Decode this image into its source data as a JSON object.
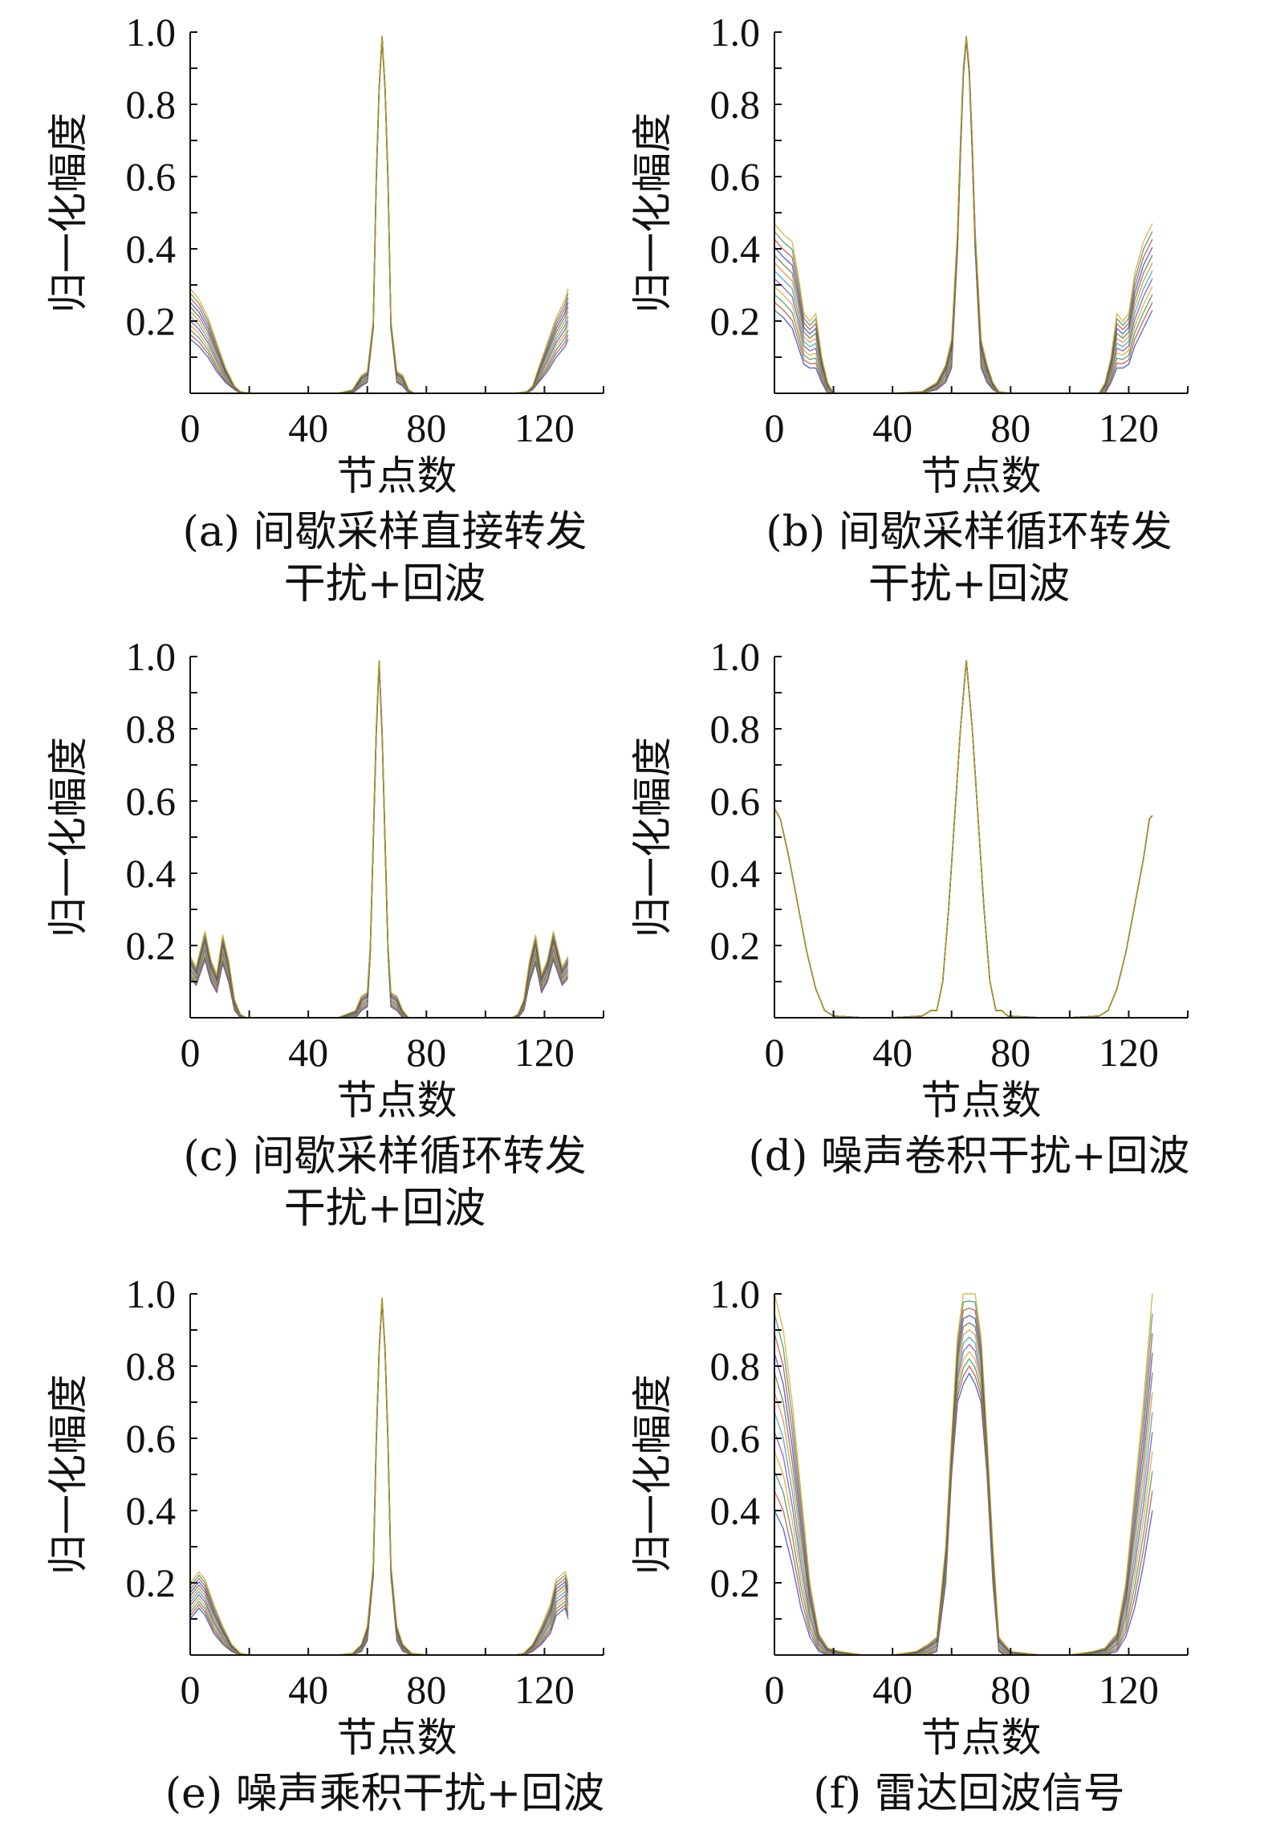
{
  "chart_data": [
    {
      "type": "line",
      "caption": [
        "(a) 间歇采样直接转发",
        "干扰+回波"
      ],
      "xlabel": "节点数",
      "ylabel": "归一化幅度",
      "xlim": [
        0,
        140
      ],
      "ylim": [
        0,
        1.0
      ],
      "xticks": [
        0,
        40,
        80,
        120
      ],
      "yticks": [
        0.2,
        0.4,
        0.6,
        0.8,
        1.0
      ],
      "grid": false,
      "x": [
        0,
        3,
        6,
        9,
        12,
        15,
        17,
        20,
        30,
        40,
        50,
        55,
        58,
        60,
        62,
        63,
        64,
        65,
        66,
        67,
        68,
        70,
        72,
        74,
        76,
        80,
        90,
        100,
        110,
        114,
        116,
        118,
        121,
        124,
        127,
        128
      ],
      "series_upper": [
        0.29,
        0.26,
        0.21,
        0.14,
        0.07,
        0.02,
        0.005,
        0.0,
        0.0,
        0.0,
        0.0,
        0.01,
        0.05,
        0.06,
        0.2,
        0.6,
        0.85,
        0.99,
        0.85,
        0.6,
        0.2,
        0.06,
        0.05,
        0.01,
        0.0,
        0.0,
        0.0,
        0.0,
        0.0,
        0.005,
        0.02,
        0.07,
        0.14,
        0.21,
        0.26,
        0.29
      ],
      "series_lower": [
        0.15,
        0.13,
        0.1,
        0.06,
        0.03,
        0.01,
        0.0,
        0.0,
        0.0,
        0.0,
        0.0,
        0.0,
        0.02,
        0.03,
        0.18,
        0.58,
        0.84,
        0.98,
        0.84,
        0.58,
        0.18,
        0.03,
        0.02,
        0.0,
        0.0,
        0.0,
        0.0,
        0.0,
        0.0,
        0.0,
        0.01,
        0.03,
        0.06,
        0.1,
        0.13,
        0.15
      ]
    },
    {
      "type": "line",
      "caption": [
        "(b) 间歇采样循环转发",
        "干扰+回波"
      ],
      "xlabel": "节点数",
      "ylabel": "归一化幅度",
      "xlim": [
        0,
        140
      ],
      "ylim": [
        0,
        1.0
      ],
      "xticks": [
        0,
        40,
        80,
        120
      ],
      "yticks": [
        0.2,
        0.4,
        0.6,
        0.8,
        1.0
      ],
      "grid": false,
      "x": [
        0,
        3,
        6,
        8,
        10,
        12,
        14,
        16,
        18,
        20,
        30,
        40,
        50,
        55,
        58,
        60,
        62,
        63,
        64,
        65,
        66,
        67,
        68,
        70,
        72,
        74,
        76,
        80,
        90,
        100,
        110,
        112,
        114,
        116,
        118,
        120,
        122,
        125,
        128
      ],
      "series_upper": [
        0.47,
        0.44,
        0.42,
        0.33,
        0.22,
        0.2,
        0.22,
        0.1,
        0.03,
        0.0,
        0.0,
        0.0,
        0.005,
        0.03,
        0.08,
        0.15,
        0.45,
        0.7,
        0.9,
        0.99,
        0.9,
        0.7,
        0.45,
        0.15,
        0.08,
        0.03,
        0.005,
        0.0,
        0.0,
        0.0,
        0.0,
        0.03,
        0.1,
        0.22,
        0.2,
        0.22,
        0.33,
        0.42,
        0.47
      ],
      "series_lower": [
        0.23,
        0.21,
        0.18,
        0.13,
        0.08,
        0.07,
        0.07,
        0.03,
        0.0,
        0.0,
        0.0,
        0.0,
        0.0,
        0.01,
        0.03,
        0.07,
        0.4,
        0.66,
        0.88,
        0.98,
        0.88,
        0.66,
        0.4,
        0.07,
        0.03,
        0.01,
        0.0,
        0.0,
        0.0,
        0.0,
        0.0,
        0.0,
        0.03,
        0.07,
        0.07,
        0.08,
        0.13,
        0.18,
        0.23
      ]
    },
    {
      "type": "line",
      "caption": [
        "(c) 间歇采样循环转发",
        "干扰+回波"
      ],
      "xlabel": "节点数",
      "ylabel": "归一化幅度",
      "xlim": [
        0,
        140
      ],
      "ylim": [
        0,
        1.0
      ],
      "xticks": [
        0,
        40,
        80,
        120
      ],
      "yticks": [
        0.2,
        0.4,
        0.6,
        0.8,
        1.0
      ],
      "grid": false,
      "x": [
        0,
        2,
        5,
        7,
        9,
        11,
        13,
        15,
        17,
        19,
        30,
        40,
        50,
        56,
        58,
        60,
        61,
        62,
        63,
        64,
        65,
        66,
        67,
        68,
        70,
        72,
        74,
        80,
        90,
        100,
        109,
        111,
        113,
        115,
        117,
        119,
        121,
        123,
        126,
        128
      ],
      "series_upper": [
        0.17,
        0.14,
        0.24,
        0.16,
        0.12,
        0.23,
        0.16,
        0.05,
        0.01,
        0.0,
        0.0,
        0.0,
        0.0,
        0.02,
        0.06,
        0.07,
        0.2,
        0.5,
        0.8,
        0.99,
        0.8,
        0.5,
        0.2,
        0.07,
        0.06,
        0.02,
        0.0,
        0.0,
        0.0,
        0.0,
        0.0,
        0.01,
        0.05,
        0.16,
        0.23,
        0.12,
        0.16,
        0.24,
        0.14,
        0.17
      ],
      "series_lower": [
        0.11,
        0.09,
        0.16,
        0.1,
        0.07,
        0.15,
        0.1,
        0.02,
        0.0,
        0.0,
        0.0,
        0.0,
        0.0,
        0.0,
        0.02,
        0.03,
        0.18,
        0.48,
        0.78,
        0.98,
        0.78,
        0.48,
        0.18,
        0.03,
        0.02,
        0.0,
        0.0,
        0.0,
        0.0,
        0.0,
        0.0,
        0.0,
        0.02,
        0.1,
        0.15,
        0.07,
        0.1,
        0.16,
        0.09,
        0.11
      ]
    },
    {
      "type": "line",
      "caption": [
        "(d) 噪声卷积干扰+回波"
      ],
      "xlabel": "节点数",
      "ylabel": "归一化幅度",
      "xlim": [
        0,
        140
      ],
      "ylim": [
        0,
        1.0
      ],
      "xticks": [
        0,
        40,
        80,
        120
      ],
      "yticks": [
        0.2,
        0.4,
        0.6,
        0.8,
        1.0
      ],
      "grid": false,
      "x": [
        0,
        2,
        5,
        8,
        11,
        14,
        17,
        20,
        30,
        40,
        50,
        53,
        55,
        57,
        59,
        61,
        63,
        65,
        67,
        69,
        71,
        73,
        75,
        77,
        79,
        90,
        100,
        110,
        113,
        116,
        119,
        122,
        125,
        127,
        128
      ],
      "series_upper": [
        0.58,
        0.55,
        0.44,
        0.31,
        0.18,
        0.08,
        0.02,
        0.005,
        0.0,
        0.0,
        0.005,
        0.02,
        0.02,
        0.1,
        0.3,
        0.55,
        0.8,
        0.99,
        0.8,
        0.55,
        0.3,
        0.1,
        0.02,
        0.02,
        0.005,
        0.0,
        0.0,
        0.005,
        0.02,
        0.08,
        0.18,
        0.31,
        0.44,
        0.55,
        0.56
      ],
      "series_lower": [
        0.58,
        0.55,
        0.44,
        0.31,
        0.18,
        0.08,
        0.02,
        0.005,
        0.0,
        0.0,
        0.005,
        0.02,
        0.02,
        0.1,
        0.3,
        0.55,
        0.8,
        0.99,
        0.8,
        0.55,
        0.3,
        0.1,
        0.02,
        0.02,
        0.005,
        0.0,
        0.0,
        0.005,
        0.02,
        0.08,
        0.18,
        0.31,
        0.44,
        0.55,
        0.56
      ]
    },
    {
      "type": "line",
      "caption": [
        "(e) 噪声乘积干扰+回波"
      ],
      "xlabel": "节点数",
      "ylabel": "归一化幅度",
      "xlim": [
        0,
        140
      ],
      "ylim": [
        0,
        1.0
      ],
      "xticks": [
        0,
        40,
        80,
        120
      ],
      "yticks": [
        0.2,
        0.4,
        0.6,
        0.8,
        1.0
      ],
      "grid": false,
      "x": [
        0,
        3,
        5,
        8,
        11,
        14,
        17,
        20,
        30,
        40,
        50,
        55,
        58,
        60,
        62,
        63,
        64,
        65,
        66,
        67,
        68,
        70,
        72,
        75,
        80,
        90,
        100,
        110,
        113,
        116,
        119,
        122,
        124,
        127,
        128
      ],
      "series_upper": [
        0.2,
        0.23,
        0.21,
        0.14,
        0.08,
        0.03,
        0.005,
        0.0,
        0.0,
        0.0,
        0.0,
        0.005,
        0.03,
        0.08,
        0.25,
        0.6,
        0.85,
        0.99,
        0.85,
        0.6,
        0.25,
        0.08,
        0.03,
        0.005,
        0.0,
        0.0,
        0.0,
        0.0,
        0.005,
        0.03,
        0.08,
        0.14,
        0.21,
        0.23,
        0.2
      ],
      "series_lower": [
        0.1,
        0.13,
        0.11,
        0.06,
        0.03,
        0.01,
        0.0,
        0.0,
        0.0,
        0.0,
        0.0,
        0.0,
        0.01,
        0.04,
        0.22,
        0.58,
        0.84,
        0.98,
        0.84,
        0.58,
        0.22,
        0.04,
        0.01,
        0.0,
        0.0,
        0.0,
        0.0,
        0.0,
        0.0,
        0.01,
        0.03,
        0.06,
        0.11,
        0.13,
        0.1
      ]
    },
    {
      "type": "line",
      "caption": [
        "(f) 雷达回波信号"
      ],
      "xlabel": "节点数",
      "ylabel": "归一化幅度",
      "xlim": [
        0,
        140
      ],
      "ylim": [
        0,
        1.0
      ],
      "xticks": [
        0,
        40,
        80,
        120
      ],
      "yticks": [
        0.2,
        0.4,
        0.6,
        0.8,
        1.0
      ],
      "grid": false,
      "x": [
        0,
        3,
        6,
        9,
        12,
        15,
        18,
        22,
        30,
        40,
        48,
        52,
        55,
        58,
        60,
        62,
        64,
        66,
        68,
        70,
        72,
        74,
        76,
        78,
        80,
        90,
        100,
        108,
        112,
        116,
        119,
        122,
        125,
        128
      ],
      "series_upper": [
        1.0,
        0.9,
        0.7,
        0.45,
        0.2,
        0.06,
        0.02,
        0.01,
        0.0,
        0.0,
        0.01,
        0.03,
        0.05,
        0.3,
        0.6,
        0.88,
        1.0,
        1.0,
        1.0,
        0.88,
        0.6,
        0.3,
        0.05,
        0.03,
        0.01,
        0.0,
        0.0,
        0.01,
        0.02,
        0.06,
        0.2,
        0.45,
        0.7,
        1.0
      ],
      "series_lower": [
        0.4,
        0.35,
        0.25,
        0.13,
        0.05,
        0.01,
        0.0,
        0.0,
        0.0,
        0.0,
        0.0,
        0.0,
        0.01,
        0.2,
        0.5,
        0.7,
        0.75,
        0.78,
        0.75,
        0.7,
        0.5,
        0.2,
        0.01,
        0.0,
        0.0,
        0.0,
        0.0,
        0.0,
        0.0,
        0.01,
        0.05,
        0.13,
        0.25,
        0.4
      ]
    }
  ],
  "colors": {
    "axis": "#111111",
    "series_palette": [
      "#1f3fbf",
      "#c0392b",
      "#2e8b57",
      "#d4a017",
      "#7d3c98",
      "#17a2b8",
      "#e67e22",
      "#556b2f"
    ]
  }
}
